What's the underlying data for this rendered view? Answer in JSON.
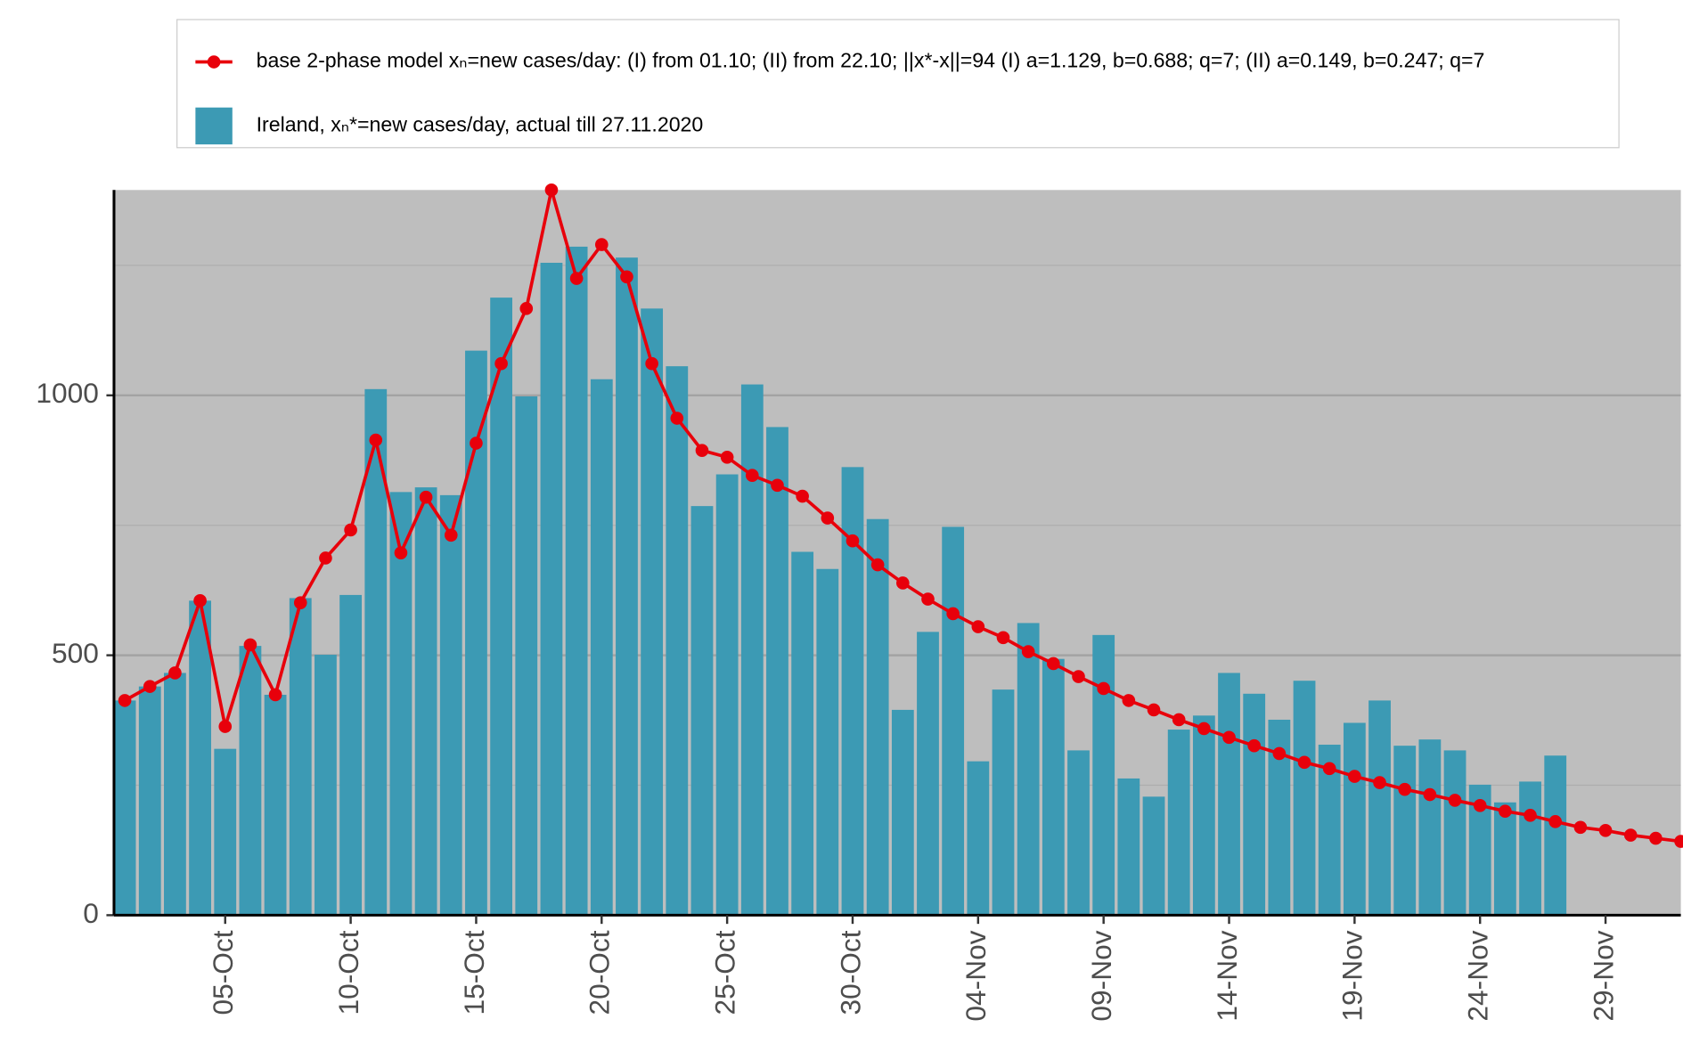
{
  "chart_data": {
    "type": "bar+line",
    "categories": [
      null,
      null,
      null,
      null,
      "05-Oct",
      null,
      null,
      null,
      null,
      "10-Oct",
      null,
      null,
      null,
      null,
      "15-Oct",
      null,
      null,
      null,
      null,
      "20-Oct",
      null,
      null,
      null,
      null,
      "25-Oct",
      null,
      null,
      null,
      null,
      "30-Oct",
      null,
      null,
      null,
      null,
      "04-Nov",
      null,
      null,
      null,
      null,
      "09-Nov",
      null,
      null,
      null,
      null,
      "14-Nov",
      null,
      null,
      null,
      null,
      "19-Nov",
      null,
      null,
      null,
      null,
      "24-Nov",
      null,
      null,
      null,
      null,
      "29-Nov",
      null,
      null,
      null
    ],
    "series": [
      {
        "name": "base 2-phase model xₙ=new cases/day: (I) from 01.10; (II) from 22.10; ||x*-x||=94  (I) a=1.129, b=0.688; q=7; (II) a=0.149, b=0.247; q=7",
        "type": "line",
        "color": "#e8000b",
        "values": [
          413,
          440,
          466,
          605,
          363,
          520,
          424,
          601,
          687,
          741,
          914,
          697,
          804,
          731,
          908,
          1061,
          1167,
          1395,
          1225,
          1290,
          1228,
          1061,
          956,
          894,
          881,
          846,
          827,
          806,
          764,
          720,
          674,
          639,
          608,
          580,
          555,
          534,
          507,
          484,
          459,
          436,
          413,
          395,
          376,
          359,
          342,
          326,
          311,
          294,
          282,
          267,
          255,
          242,
          232,
          221,
          211,
          200,
          192,
          180,
          169,
          163,
          154,
          148,
          142
        ]
      },
      {
        "name": "Ireland, xₙ*=new cases/day, actual till 27.11.2020",
        "type": "bar",
        "color": "#3c9ab4",
        "values": [
          413,
          440,
          466,
          605,
          320,
          518,
          424,
          610,
          501,
          616,
          1012,
          814,
          823,
          808,
          1086,
          1188,
          998,
          1255,
          1286,
          1031,
          1265,
          1167,
          1056,
          787,
          848,
          1021,
          939,
          699,
          666,
          862,
          762,
          395,
          545,
          747,
          296,
          434,
          562,
          493,
          317,
          539,
          263,
          228,
          357,
          384,
          466,
          426,
          376,
          451,
          328,
          370,
          413,
          326,
          338,
          317,
          251,
          217,
          257,
          307,
          null,
          null,
          null,
          null,
          null
        ]
      }
    ],
    "ylim": [
      0,
      1395
    ],
    "yticks": [
      0,
      500,
      1000
    ],
    "minor_yticks": [
      250,
      750,
      1250
    ],
    "grid": true,
    "background": "#bebebe",
    "legend": "top"
  }
}
